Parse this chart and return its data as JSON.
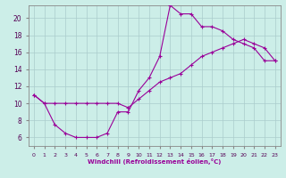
{
  "xlabel": "Windchill (Refroidissement éolien,°C)",
  "bg_color": "#cceee8",
  "grid_color": "#aacccc",
  "line_color": "#990099",
  "xlim": [
    -0.5,
    23.5
  ],
  "ylim": [
    5,
    21.5
  ],
  "xticks": [
    0,
    1,
    2,
    3,
    4,
    5,
    6,
    7,
    8,
    9,
    10,
    11,
    12,
    13,
    14,
    15,
    16,
    17,
    18,
    19,
    20,
    21,
    22,
    23
  ],
  "yticks": [
    6,
    8,
    10,
    12,
    14,
    16,
    18,
    20
  ],
  "line1_x": [
    0,
    1,
    2,
    3,
    4,
    5,
    6,
    7,
    8,
    9,
    10,
    11,
    12,
    13,
    14,
    15,
    16,
    17,
    18,
    19,
    20,
    21,
    22,
    23
  ],
  "line1_y": [
    11,
    10,
    7.5,
    6.5,
    6.0,
    6.0,
    6.0,
    6.5,
    9.0,
    9.0,
    11.5,
    13.0,
    15.5,
    21.5,
    20.5,
    20.5,
    19.0,
    19.0,
    18.5,
    17.5,
    17.0,
    16.5,
    15.0,
    15.0
  ],
  "line2_x": [
    0,
    1,
    2,
    3,
    4,
    5,
    6,
    7,
    8,
    9,
    10,
    11,
    12,
    13,
    14,
    15,
    16,
    17,
    18,
    19,
    20,
    21,
    22,
    23
  ],
  "line2_y": [
    11,
    10,
    10,
    10,
    10,
    10,
    10,
    10,
    10,
    9.5,
    10.5,
    11.5,
    12.5,
    13.0,
    13.5,
    14.5,
    15.5,
    16.0,
    16.5,
    17.0,
    17.5,
    17.0,
    16.5,
    15.0
  ]
}
